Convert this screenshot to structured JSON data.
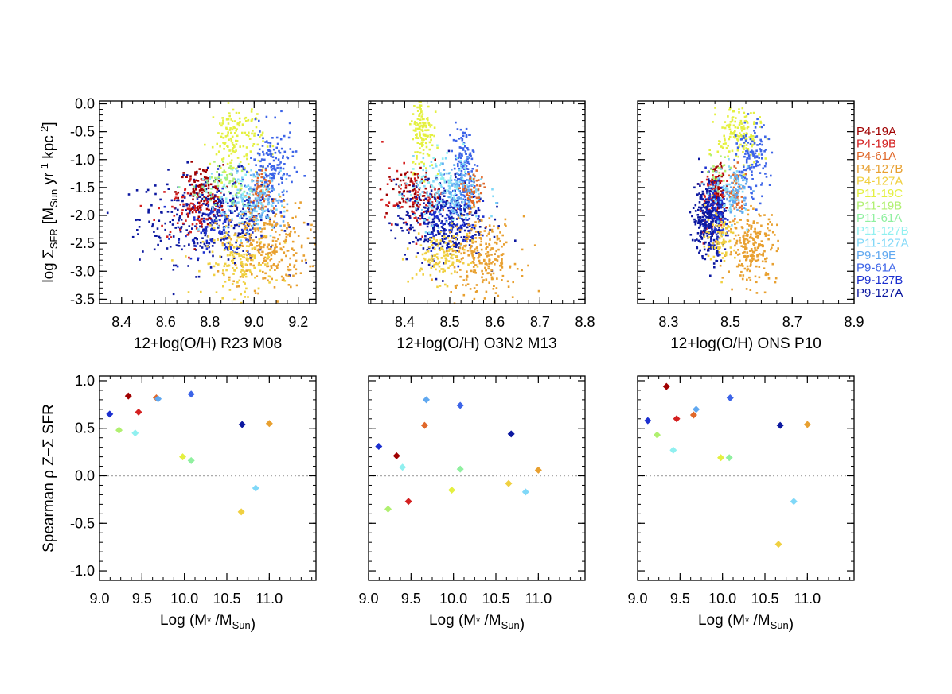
{
  "legend": [
    {
      "name": "P4-19A",
      "color": "#a00000"
    },
    {
      "name": "P4-19B",
      "color": "#d42020"
    },
    {
      "name": "P4-61A",
      "color": "#e0682a"
    },
    {
      "name": "P4-127B",
      "color": "#e8a030"
    },
    {
      "name": "P4-127A",
      "color": "#f0d040"
    },
    {
      "name": "P11-19C",
      "color": "#e4f040"
    },
    {
      "name": "P11-19B",
      "color": "#b0f070"
    },
    {
      "name": "P11-61A",
      "color": "#90f0a0"
    },
    {
      "name": "P11-127B",
      "color": "#90f0f0"
    },
    {
      "name": "P11-127A",
      "color": "#80d8f8"
    },
    {
      "name": "P9-19E",
      "color": "#60a8f0"
    },
    {
      "name": "P9-61A",
      "color": "#3c64e8"
    },
    {
      "name": "P9-127B",
      "color": "#1c30d0"
    },
    {
      "name": "P9-127A",
      "color": "#0c18a0"
    }
  ],
  "chart_data": [
    {
      "type": "scatter",
      "panel": "top-left",
      "xlabel": "12+log(O/H) R23 M08",
      "ylabel": "log ΣSFR [MSun yr-1 kpc-2]",
      "xlim": [
        8.3,
        9.28
      ],
      "ylim": [
        -3.58,
        0.05
      ],
      "xticks": [
        8.4,
        8.6,
        8.8,
        9.0,
        9.2
      ],
      "xtick_labels": [
        "8.4",
        "8.6",
        "8.8",
        "9.0",
        "9.2"
      ],
      "yticks": [
        -3.5,
        -3.0,
        -2.5,
        -2.0,
        -1.5,
        -1.0,
        -0.5,
        0.0
      ],
      "ytick_labels": [
        "-3.5",
        "-3.0",
        "-2.5",
        "-2.0",
        "-1.5",
        "-1.0",
        "-0.5",
        "0.0"
      ],
      "clusters": [
        {
          "series": "P9-127A",
          "cx": 8.8,
          "cy": -2.05,
          "sx": 0.16,
          "sy": 0.4,
          "n": 360
        },
        {
          "series": "P9-127B",
          "cx": 8.88,
          "cy": -2.15,
          "sx": 0.1,
          "sy": 0.3,
          "n": 150
        },
        {
          "series": "P4-19A",
          "cx": 8.76,
          "cy": -1.6,
          "sx": 0.05,
          "sy": 0.25,
          "n": 110
        },
        {
          "series": "P4-19B",
          "cx": 8.72,
          "cy": -1.9,
          "sx": 0.08,
          "sy": 0.3,
          "n": 80
        },
        {
          "series": "P4-127B",
          "cx": 9.06,
          "cy": -2.55,
          "sx": 0.09,
          "sy": 0.38,
          "n": 260
        },
        {
          "series": "P4-127A",
          "cx": 8.93,
          "cy": -2.85,
          "sx": 0.08,
          "sy": 0.3,
          "n": 150
        },
        {
          "series": "P11-19C",
          "cx": 8.92,
          "cy": -0.65,
          "sx": 0.06,
          "sy": 0.35,
          "n": 150
        },
        {
          "series": "P9-61A",
          "cx": 9.08,
          "cy": -1.15,
          "sx": 0.05,
          "sy": 0.35,
          "n": 150
        },
        {
          "series": "P9-19E",
          "cx": 9.02,
          "cy": -1.65,
          "sx": 0.06,
          "sy": 0.25,
          "n": 80
        },
        {
          "series": "P4-61A",
          "cx": 9.02,
          "cy": -1.65,
          "sx": 0.025,
          "sy": 0.22,
          "n": 60
        },
        {
          "series": "P11-127A",
          "cx": 8.98,
          "cy": -1.8,
          "sx": 0.07,
          "sy": 0.3,
          "n": 90
        },
        {
          "series": "P11-127B",
          "cx": 8.9,
          "cy": -1.5,
          "sx": 0.08,
          "sy": 0.2,
          "n": 40
        },
        {
          "series": "P11-61A",
          "cx": 8.87,
          "cy": -1.6,
          "sx": 0.08,
          "sy": 0.2,
          "n": 30
        },
        {
          "series": "P11-19B",
          "cx": 8.86,
          "cy": -1.25,
          "sx": 0.05,
          "sy": 0.2,
          "n": 30
        }
      ]
    },
    {
      "type": "scatter",
      "panel": "top-middle",
      "xlabel": "12+log(O/H) O3N2 M13",
      "xlim": [
        8.32,
        8.8
      ],
      "ylim": [
        -3.58,
        0.05
      ],
      "xticks": [
        8.4,
        8.5,
        8.6,
        8.7,
        8.8
      ],
      "xtick_labels": [
        "8.4",
        "8.5",
        "8.6",
        "8.7",
        "8.8"
      ],
      "yticks": [
        -3.5,
        -3.0,
        -2.5,
        -2.0,
        -1.5,
        -1.0,
        -0.5,
        0.0
      ],
      "clusters": [
        {
          "series": "P11-19C",
          "cx": 8.44,
          "cy": -0.5,
          "sx": 0.012,
          "sy": 0.35,
          "n": 140
        },
        {
          "series": "P9-61A",
          "cx": 8.53,
          "cy": -1.1,
          "sx": 0.012,
          "sy": 0.35,
          "n": 130
        },
        {
          "series": "P4-19A",
          "cx": 8.42,
          "cy": -1.6,
          "sx": 0.03,
          "sy": 0.22,
          "n": 100
        },
        {
          "series": "P4-19B",
          "cx": 8.42,
          "cy": -1.75,
          "sx": 0.035,
          "sy": 0.3,
          "n": 70
        },
        {
          "series": "P9-127A",
          "cx": 8.48,
          "cy": -2.1,
          "sx": 0.05,
          "sy": 0.35,
          "n": 320
        },
        {
          "series": "P9-127B",
          "cx": 8.5,
          "cy": -2.0,
          "sx": 0.03,
          "sy": 0.3,
          "n": 120
        },
        {
          "series": "P11-127A",
          "cx": 8.5,
          "cy": -1.6,
          "sx": 0.04,
          "sy": 0.3,
          "n": 150
        },
        {
          "series": "P11-127B",
          "cx": 8.49,
          "cy": -1.4,
          "sx": 0.05,
          "sy": 0.25,
          "n": 60
        },
        {
          "series": "P4-127B",
          "cx": 8.57,
          "cy": -2.75,
          "sx": 0.04,
          "sy": 0.35,
          "n": 240
        },
        {
          "series": "P4-127A",
          "cx": 8.48,
          "cy": -2.75,
          "sx": 0.03,
          "sy": 0.22,
          "n": 120
        },
        {
          "series": "P4-61A",
          "cx": 8.55,
          "cy": -1.6,
          "sx": 0.012,
          "sy": 0.2,
          "n": 60
        },
        {
          "series": "P9-19E",
          "cx": 8.52,
          "cy": -1.55,
          "sx": 0.02,
          "sy": 0.25,
          "n": 60
        }
      ]
    },
    {
      "type": "scatter",
      "panel": "top-right",
      "xlabel": "12+log(O/H) ONS P10",
      "xlim": [
        8.2,
        8.9
      ],
      "ylim": [
        -3.58,
        0.05
      ],
      "xticks": [
        8.3,
        8.5,
        8.7,
        8.9
      ],
      "xtick_labels": [
        "8.3",
        "8.5",
        "8.7",
        "8.9"
      ],
      "yticks": [
        -3.5,
        -3.0,
        -2.5,
        -2.0,
        -1.5,
        -1.0,
        -0.5,
        0.0
      ],
      "clusters": [
        {
          "series": "P11-19C",
          "cx": 8.53,
          "cy": -0.55,
          "sx": 0.035,
          "sy": 0.3,
          "n": 150
        },
        {
          "series": "P9-61A",
          "cx": 8.57,
          "cy": -1.05,
          "sx": 0.025,
          "sy": 0.35,
          "n": 130
        },
        {
          "series": "P4-19A",
          "cx": 8.46,
          "cy": -1.55,
          "sx": 0.012,
          "sy": 0.22,
          "n": 110
        },
        {
          "series": "P4-19B",
          "cx": 8.44,
          "cy": -1.8,
          "sx": 0.02,
          "sy": 0.3,
          "n": 70
        },
        {
          "series": "P9-127A",
          "cx": 8.43,
          "cy": -2.05,
          "sx": 0.025,
          "sy": 0.35,
          "n": 300
        },
        {
          "series": "P9-127B",
          "cx": 8.45,
          "cy": -2.0,
          "sx": 0.02,
          "sy": 0.3,
          "n": 100
        },
        {
          "series": "P4-127B",
          "cx": 8.57,
          "cy": -2.55,
          "sx": 0.04,
          "sy": 0.32,
          "n": 220
        },
        {
          "series": "P4-127A",
          "cx": 8.47,
          "cy": -2.35,
          "sx": 0.025,
          "sy": 0.25,
          "n": 80
        },
        {
          "series": "P4-61A",
          "cx": 8.52,
          "cy": -1.6,
          "sx": 0.012,
          "sy": 0.2,
          "n": 60
        },
        {
          "series": "P11-127A",
          "cx": 8.5,
          "cy": -1.65,
          "sx": 0.03,
          "sy": 0.25,
          "n": 80
        },
        {
          "series": "P9-19E",
          "cx": 8.52,
          "cy": -1.55,
          "sx": 0.02,
          "sy": 0.2,
          "n": 50
        },
        {
          "series": "P11-19B",
          "cx": 8.46,
          "cy": -1.2,
          "sx": 0.02,
          "sy": 0.15,
          "n": 20
        }
      ]
    },
    {
      "type": "scatter",
      "panel": "bottom-left",
      "xlabel": "Log (M* /MSun)",
      "ylabel": "Spearman ρ Z−Σ SFR",
      "xlim": [
        9.0,
        11.55
      ],
      "ylim": [
        -1.1,
        1.05
      ],
      "xticks": [
        9.0,
        9.5,
        10.0,
        10.5,
        11.0
      ],
      "xtick_labels": [
        "9.0",
        "9.5",
        "10.0",
        "10.5",
        "11.0"
      ],
      "yticks": [
        -1.0,
        -0.5,
        0.0,
        0.5,
        1.0
      ],
      "ytick_labels": [
        "-1.0",
        "-0.5",
        "0.0",
        "0.5",
        "1.0"
      ],
      "reference_line": 0.0,
      "points": [
        {
          "series": "P4-19A",
          "x": 9.34,
          "y": 0.84
        },
        {
          "series": "P4-19B",
          "x": 9.46,
          "y": 0.67
        },
        {
          "series": "P4-61A",
          "x": 9.67,
          "y": 0.82
        },
        {
          "series": "P4-127B",
          "x": 11.0,
          "y": 0.55
        },
        {
          "series": "P4-127A",
          "x": 10.67,
          "y": -0.38
        },
        {
          "series": "P11-19C",
          "x": 9.98,
          "y": 0.2
        },
        {
          "series": "P11-19B",
          "x": 9.23,
          "y": 0.48
        },
        {
          "series": "P11-61A",
          "x": 10.08,
          "y": 0.16
        },
        {
          "series": "P11-127B",
          "x": 9.42,
          "y": 0.45
        },
        {
          "series": "P11-127A",
          "x": 10.84,
          "y": -0.13
        },
        {
          "series": "P9-19E",
          "x": 9.69,
          "y": 0.81
        },
        {
          "series": "P9-61A",
          "x": 10.08,
          "y": 0.86
        },
        {
          "series": "P9-127B",
          "x": 9.12,
          "y": 0.65
        },
        {
          "series": "P9-127A",
          "x": 10.68,
          "y": 0.54
        }
      ]
    },
    {
      "type": "scatter",
      "panel": "bottom-middle",
      "xlabel": "Log (M* /MSun)",
      "xlim": [
        9.0,
        11.55
      ],
      "ylim": [
        -1.1,
        1.05
      ],
      "xticks": [
        9.0,
        9.5,
        10.0,
        10.5,
        11.0
      ],
      "xtick_labels": [
        "9.0",
        "9.5",
        "10.0",
        "10.5",
        "11.0"
      ],
      "yticks": [
        -1.0,
        -0.5,
        0.0,
        0.5,
        1.0
      ],
      "reference_line": 0.0,
      "points": [
        {
          "series": "P4-19A",
          "x": 9.33,
          "y": 0.21
        },
        {
          "series": "P4-19B",
          "x": 9.47,
          "y": -0.27
        },
        {
          "series": "P4-61A",
          "x": 9.66,
          "y": 0.53
        },
        {
          "series": "P4-127B",
          "x": 11.0,
          "y": 0.06
        },
        {
          "series": "P4-127A",
          "x": 10.65,
          "y": -0.08
        },
        {
          "series": "P11-19C",
          "x": 9.98,
          "y": -0.15
        },
        {
          "series": "P11-19B",
          "x": 9.23,
          "y": -0.35
        },
        {
          "series": "P11-61A",
          "x": 10.08,
          "y": 0.07
        },
        {
          "series": "P11-127B",
          "x": 9.4,
          "y": 0.09
        },
        {
          "series": "P11-127A",
          "x": 10.85,
          "y": -0.17
        },
        {
          "series": "P9-19E",
          "x": 9.68,
          "y": 0.8
        },
        {
          "series": "P9-61A",
          "x": 10.08,
          "y": 0.74
        },
        {
          "series": "P9-127B",
          "x": 9.12,
          "y": 0.31
        },
        {
          "series": "P9-127A",
          "x": 10.68,
          "y": 0.44
        }
      ]
    },
    {
      "type": "scatter",
      "panel": "bottom-right",
      "xlabel": "Log (M* /MSun)",
      "xlim": [
        9.0,
        11.55
      ],
      "ylim": [
        -1.1,
        1.05
      ],
      "xticks": [
        9.0,
        9.5,
        10.0,
        10.5,
        11.0
      ],
      "xtick_labels": [
        "9.0",
        "9.5",
        "10.0",
        "10.5",
        "11.0"
      ],
      "yticks": [
        -1.0,
        -0.5,
        0.0,
        0.5,
        1.0
      ],
      "reference_line": 0.0,
      "points": [
        {
          "series": "P4-19A",
          "x": 9.34,
          "y": 0.94
        },
        {
          "series": "P4-19B",
          "x": 9.46,
          "y": 0.6
        },
        {
          "series": "P4-61A",
          "x": 9.66,
          "y": 0.64
        },
        {
          "series": "P4-127B",
          "x": 11.0,
          "y": 0.54
        },
        {
          "series": "P4-127A",
          "x": 10.66,
          "y": -0.72
        },
        {
          "series": "P11-19C",
          "x": 9.98,
          "y": 0.19
        },
        {
          "series": "P11-19B",
          "x": 9.23,
          "y": 0.43
        },
        {
          "series": "P11-61A",
          "x": 10.08,
          "y": 0.19
        },
        {
          "series": "P11-127B",
          "x": 9.42,
          "y": 0.27
        },
        {
          "series": "P11-127A",
          "x": 10.84,
          "y": -0.27
        },
        {
          "series": "P9-19E",
          "x": 9.69,
          "y": 0.7
        },
        {
          "series": "P9-61A",
          "x": 10.09,
          "y": 0.82
        },
        {
          "series": "P9-127B",
          "x": 9.12,
          "y": 0.58
        },
        {
          "series": "P9-127A",
          "x": 10.68,
          "y": 0.53
        }
      ]
    }
  ]
}
